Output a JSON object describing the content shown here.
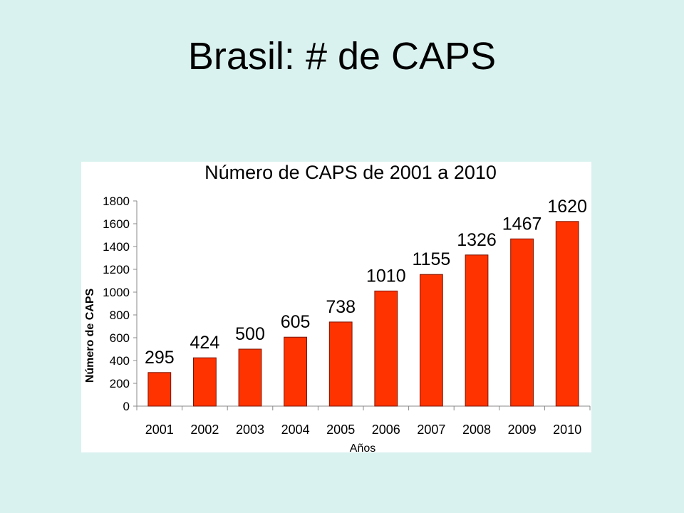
{
  "slide": {
    "title": "Brasil: # de CAPS"
  },
  "colors": {
    "background": "#d9f2ef",
    "bar_fill": "#ff3300",
    "bar_stroke": "#7a1400"
  },
  "chart_data": {
    "type": "bar",
    "title": "Número de CAPS de 2001 a 2010",
    "xlabel": "Años",
    "ylabel": "Número de CAPS",
    "categories": [
      "2001",
      "2002",
      "2003",
      "2004",
      "2005",
      "2006",
      "2007",
      "2008",
      "2009",
      "2010"
    ],
    "values": [
      295,
      424,
      500,
      605,
      738,
      1010,
      1155,
      1326,
      1467,
      1620
    ],
    "data_labels": [
      "295",
      "424",
      "500",
      "605",
      "738",
      "1010",
      "1155",
      "1326",
      "1467",
      "1620"
    ],
    "ylim": [
      0,
      1800
    ],
    "yticks": [
      0,
      200,
      400,
      600,
      800,
      1000,
      1200,
      1400,
      1600,
      1800
    ],
    "grid": false,
    "legend": "none"
  }
}
